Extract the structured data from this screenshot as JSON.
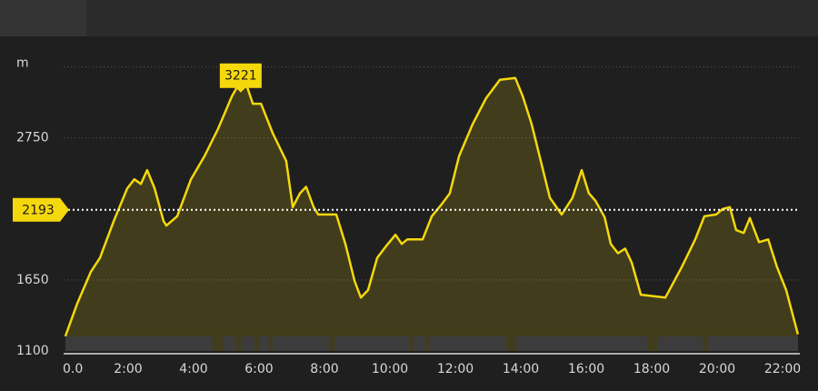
{
  "chart_data": {
    "type": "area",
    "x": [
      0.08,
      0.44,
      0.86,
      1.14,
      1.56,
      1.97,
      2.19,
      2.39,
      2.58,
      2.81,
      3.08,
      3.17,
      3.5,
      3.92,
      4.33,
      4.75,
      5.17,
      5.36,
      5.44,
      5.64,
      5.81,
      6.06,
      6.42,
      6.83,
      7.03,
      7.25,
      7.44,
      7.67,
      7.81,
      8.36,
      8.64,
      8.92,
      9.11,
      9.33,
      9.61,
      9.89,
      10.17,
      10.36,
      10.53,
      11,
      11.28,
      11.56,
      11.83,
      12.11,
      12.53,
      12.94,
      13.36,
      13.83,
      14.06,
      14.33,
      14.61,
      14.89,
      15.25,
      15.58,
      15.86,
      16.08,
      16.28,
      16.56,
      16.75,
      16.97,
      17.19,
      17.39,
      17.67,
      18.42,
      18.92,
      19.33,
      19.61,
      19.97,
      20.17,
      20.39,
      20.58,
      20.81,
      21,
      21.28,
      21.56,
      21.83,
      22.11,
      22.47
    ],
    "series": [
      {
        "color": "#f5d80c",
        "values": [
          1214,
          1464,
          1714,
          1821,
          2107,
          2357,
          2429,
          2393,
          2500,
          2357,
          2107,
          2071,
          2143,
          2429,
          2607,
          2821,
          3071,
          3157,
          3221,
          3143,
          3014,
          3014,
          2786,
          2571,
          2214,
          2321,
          2371,
          2214,
          2157,
          2157,
          1929,
          1643,
          1514,
          1571,
          1821,
          1914,
          2000,
          1929,
          1964,
          1964,
          2143,
          2229,
          2321,
          2607,
          2857,
          3057,
          3200,
          3214,
          3071,
          2857,
          2571,
          2286,
          2157,
          2286,
          2500,
          2321,
          2264,
          2136,
          1929,
          1857,
          1893,
          1786,
          1536,
          1514,
          1750,
          1964,
          2143,
          2157,
          2200,
          2214,
          2036,
          2014,
          2129,
          1943,
          1964,
          1750,
          1571,
          1229
        ]
      }
    ],
    "xlim": [
      0,
      22.5
    ],
    "ylim": [
      1100,
      3300
    ],
    "xticks": [
      {
        "value": 0,
        "label": "0.0"
      },
      {
        "value": 2,
        "label": "2:00"
      },
      {
        "value": 4,
        "label": "4:00"
      },
      {
        "value": 6,
        "label": "6:00"
      },
      {
        "value": 8,
        "label": "8:00"
      },
      {
        "value": 10,
        "label": "10:00"
      },
      {
        "value": 12,
        "label": "12:00"
      },
      {
        "value": 14,
        "label": "14:00"
      },
      {
        "value": 16,
        "label": "16:00"
      },
      {
        "value": 18,
        "label": "18:00"
      },
      {
        "value": 20,
        "label": "20:00"
      },
      {
        "value": 22,
        "label": "22:00"
      }
    ],
    "yticks": [
      1100,
      1650,
      2750,
      {
        "value": 3300,
        "label": "m"
      }
    ],
    "grid": true,
    "peak_index": 18,
    "reference_line": 2193
  }
}
